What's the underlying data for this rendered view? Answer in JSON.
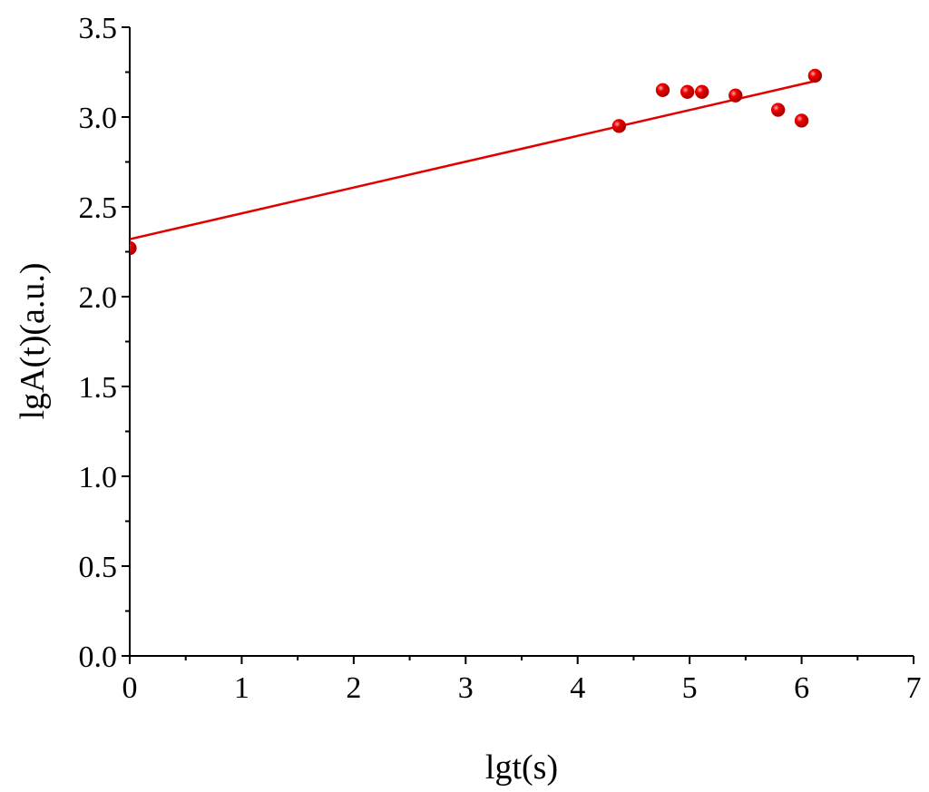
{
  "chart_data": {
    "type": "scatter",
    "xlabel": "lgt(s)",
    "ylabel": "lgA(t)(a.u.)",
    "x": [
      0,
      4.37,
      4.76,
      4.98,
      5.11,
      5.41,
      5.79,
      6.0,
      6.12
    ],
    "values": [
      2.27,
      2.95,
      3.15,
      3.14,
      3.14,
      3.12,
      3.04,
      2.98,
      3.23
    ],
    "color": "#e00000",
    "fit_line": {
      "x": [
        0,
        6.12
      ],
      "values": [
        2.32,
        3.2
      ],
      "color": "#e00000"
    },
    "xlim": [
      0,
      7
    ],
    "xticks": [
      0,
      1,
      2,
      3,
      4,
      5,
      6,
      7
    ],
    "ylim": [
      0,
      3.5
    ],
    "yticks": [
      {
        "value": 0,
        "label": "0.0"
      },
      0.5,
      {
        "value": 1,
        "label": "1.0"
      },
      1.5,
      {
        "value": 2,
        "label": "2.0"
      },
      2.5,
      {
        "value": 3,
        "label": "3.0"
      },
      3.5
    ],
    "grid": false
  }
}
